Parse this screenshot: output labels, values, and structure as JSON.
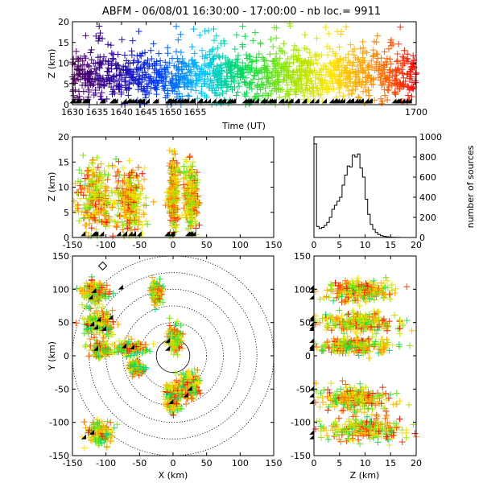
{
  "title": "ABFM - 06/08/01 16:30:00 - 17:00:00 - nb loc.=    9911",
  "chart_data": [
    {
      "id": "time-height",
      "type": "scatter",
      "xlabel": "Time (UT)",
      "ylabel": "Z (km)",
      "xlim": [
        1630,
        1700
      ],
      "ylim": [
        0,
        20
      ],
      "xticks": [
        "1630",
        "1635",
        "1640",
        "1645",
        "1650",
        "1655",
        "1700"
      ],
      "yticks": [
        "0",
        "5",
        "10",
        "15",
        "20"
      ],
      "color_encoding": "time (purple to red)",
      "station_marker": "triangle"
    },
    {
      "id": "x-z",
      "type": "scatter",
      "xlabel": "",
      "ylabel": "Z (km)",
      "xlim": [
        -150,
        150
      ],
      "ylim": [
        0,
        20
      ],
      "xticks": [
        "-150",
        "-100",
        "-50",
        "0",
        "50",
        "100",
        "150"
      ],
      "yticks": [
        "0",
        "5",
        "10",
        "15",
        "20"
      ],
      "clusters": [
        {
          "x": -115,
          "z": 8,
          "sx": 14,
          "sz": 3.5
        },
        {
          "x": -65,
          "z": 7,
          "sx": 10,
          "sz": 3
        },
        {
          "x": 0,
          "z": 8,
          "sx": 4,
          "sz": 3.5
        },
        {
          "x": 27,
          "z": 8,
          "sx": 5,
          "sz": 3
        }
      ]
    },
    {
      "id": "altitude-histogram",
      "type": "bar",
      "xlabel": "",
      "ylabel": "number of sources",
      "xlim": [
        0,
        20
      ],
      "ylim": [
        0,
        1000
      ],
      "xticks": [
        "0",
        "5",
        "10",
        "15",
        "20"
      ],
      "yticks": [
        "0",
        "200",
        "400",
        "600",
        "800",
        "1000"
      ],
      "bin_width_km": 0.5,
      "values": [
        930,
        110,
        90,
        100,
        120,
        150,
        200,
        280,
        320,
        360,
        400,
        520,
        620,
        710,
        700,
        820,
        800,
        830,
        690,
        600,
        380,
        230,
        130,
        80,
        50,
        30,
        18,
        12,
        8,
        5,
        3,
        2,
        1,
        1,
        0,
        0,
        0,
        0,
        0,
        0
      ]
    },
    {
      "id": "x-y-plan",
      "type": "scatter",
      "xlabel": "X (km)",
      "ylabel": "Y (km)",
      "xlim": [
        -150,
        150
      ],
      "ylim": [
        -150,
        150
      ],
      "xticks": [
        "-150",
        "-100",
        "-50",
        "0",
        "50",
        "100",
        "150"
      ],
      "yticks": [
        "-150",
        "-100",
        "-50",
        "0",
        "50",
        "100",
        "150"
      ],
      "range_rings_km": [
        25,
        50,
        75,
        100,
        125,
        150
      ],
      "clusters": [
        {
          "x": -118,
          "y": 95,
          "sx": 10,
          "sy": 8
        },
        {
          "x": -112,
          "y": 48,
          "sx": 12,
          "sy": 10
        },
        {
          "x": -108,
          "y": 8,
          "sx": 6,
          "sy": 5
        },
        {
          "x": -65,
          "y": 12,
          "sx": 12,
          "sy": 5
        },
        {
          "x": -25,
          "y": 95,
          "sx": 4,
          "sy": 8
        },
        {
          "x": 2,
          "y": 25,
          "sx": 5,
          "sy": 10
        },
        {
          "x": 0,
          "y": -60,
          "sx": 6,
          "sy": 12
        },
        {
          "x": 25,
          "y": -45,
          "sx": 8,
          "sy": 10
        },
        {
          "x": -110,
          "y": -115,
          "sx": 10,
          "sy": 10
        },
        {
          "x": -55,
          "y": -18,
          "sx": 5,
          "sy": 5
        }
      ],
      "stations": [
        {
          "x": -115,
          "y": 95
        },
        {
          "x": -120,
          "y": 85
        },
        {
          "x": -108,
          "y": 52
        },
        {
          "x": -118,
          "y": 45
        },
        {
          "x": -112,
          "y": 40
        },
        {
          "x": -100,
          "y": 38
        },
        {
          "x": -112,
          "y": 8
        },
        {
          "x": -70,
          "y": 12
        },
        {
          "x": -58,
          "y": 10
        },
        {
          "x": -5,
          "y": 20
        },
        {
          "x": -5,
          "y": 8
        },
        {
          "x": 28,
          "y": -52
        },
        {
          "x": 22,
          "y": -62
        },
        {
          "x": 0,
          "y": -72
        },
        {
          "x": -118,
          "y": -118
        },
        {
          "x": -130,
          "y": -125
        },
        {
          "x": -75,
          "y": 100
        },
        {
          "x": -90,
          "y": 55
        }
      ],
      "diamond": {
        "x": -105,
        "y": 135
      }
    },
    {
      "id": "z-y",
      "type": "scatter",
      "xlabel": "Z (km)",
      "ylabel": "",
      "xlim": [
        0,
        20
      ],
      "ylim": [
        -150,
        150
      ],
      "xticks": [
        "0",
        "5",
        "10",
        "15",
        "20"
      ],
      "yticks": [
        "-150",
        "-100",
        "-50",
        "0",
        "50",
        "100",
        "150"
      ],
      "clusters": [
        {
          "y": 98,
          "z": 9,
          "sy": 8,
          "sz": 3
        },
        {
          "y": 50,
          "z": 9,
          "sy": 7,
          "sz": 3.5
        },
        {
          "y": 15,
          "z": 8,
          "sy": 6,
          "sz": 3.5
        },
        {
          "y": -65,
          "z": 8,
          "sy": 10,
          "sz": 3
        },
        {
          "y": -110,
          "z": 10,
          "sy": 8,
          "sz": 4
        }
      ]
    }
  ]
}
